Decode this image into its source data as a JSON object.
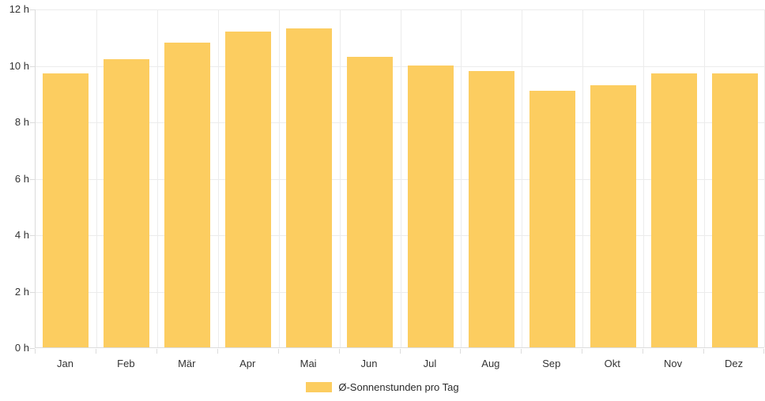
{
  "chart_data": {
    "type": "bar",
    "categories": [
      "Jan",
      "Feb",
      "Mär",
      "Apr",
      "Mai",
      "Jun",
      "Jul",
      "Aug",
      "Sep",
      "Okt",
      "Nov",
      "Dez"
    ],
    "series": [
      {
        "name": "Ø-Sonnenstunden pro Tag",
        "values": [
          9.7,
          10.2,
          10.8,
          11.2,
          11.3,
          10.3,
          10.0,
          9.8,
          9.1,
          9.3,
          9.7,
          9.7
        ]
      }
    ],
    "title": "",
    "xlabel": "",
    "ylabel": "",
    "ylim": [
      0,
      12
    ],
    "yticks": [
      0,
      2,
      4,
      6,
      8,
      10,
      12
    ],
    "ytick_suffix": " h",
    "grid": true,
    "legend_position": "bottom",
    "colors": {
      "bar": "#FCCD60",
      "grid": "#ECECEC",
      "axis_border": "#DCDCDC",
      "label": "#333333"
    }
  }
}
